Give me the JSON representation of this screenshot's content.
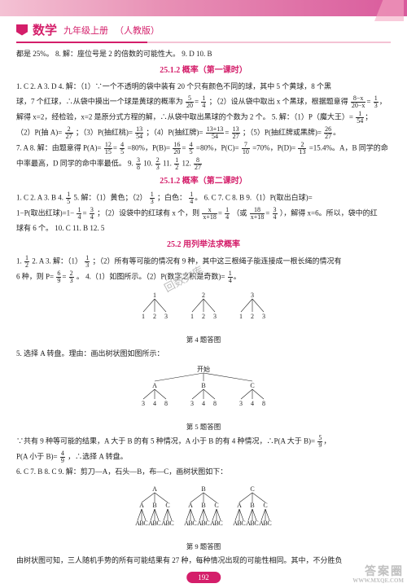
{
  "header": {
    "subject": "数学",
    "grade": "九年级上册",
    "edition": "（人教版）"
  },
  "content": {
    "line0": "都是 25%。 8. 解：座位号是 2 的倍数的可能性大。 9. D  10. B",
    "section1": "25.1.2  概率（第一课时）",
    "s1_p1_a": "1. C  2. A  3. D  4. 解：（1）∵一个不透明的袋中装有 20 个只有颜色不同的球，其中 5 个黄球，8 个黑",
    "s1_p1_b": "球，7 个红球，∴从袋中摸出一个球是黄球的概率为",
    "s1_p1_c": "；（2）设从袋中取出 x 个黑球，根据题意得",
    "s1_eq_lhs": "5",
    "s1_eq_rhs": "20",
    "s1_eq2": "解得 x=2，经检验，x=2 是原分式方程的解，∴从袋中取出黑球的个数为 2 个。 5. 解：（1）P（魔大王）=",
    "s1_p2": "（2）P(抽 A)=",
    "s1_p2b": "；（3）P(抽红桃)=",
    "s1_p2c": "；（4）P(抽红牌)=",
    "s1_p2d": "；（5）P(抽红牌或黑牌)=",
    "s1_p3a": "7. A  8. 解：由题意得 P(A)=",
    "s1_p3b": "=80%，P(B)=",
    "s1_p3c": "=80%，P(C)=",
    "s1_p3d": "=70%，P(D)=",
    "s1_p3e": "=15.4%。A，B 同学的命",
    "s1_p4": "中率最高，D 同学的命中率最低。 9.",
    "s1_p4b": "  10.",
    "s1_p4c": "  11.",
    "s1_p4d": "  12.",
    "section2": "25.1.2  概率（第二课时）",
    "s2_p1a": "1. C  2. A  3. B  4.",
    "s2_p1b": "  5. 解：（1）黄色；（2）",
    "s2_p1c": "；白色：",
    "s2_p1d": "6. C  7. C  8. B  9.（1）P(取出白球)=",
    "s2_p2a": "1−P(取出红球)=1−",
    "s2_p2b": "；（2）设袋中的红球有 x 个，则",
    "s2_p2c": "（或",
    "s2_p2d": "），解得 x=6。所以，袋中的红",
    "s2_p3": "球有 6 个。 10. C  11. B  12. 5",
    "section3": "25.2  用列举法求概率",
    "s3_p1a": "1.",
    "s3_p1b": "  2. A  3. 解：（1）",
    "s3_p1c": "；（2）所有等可能的情况有 9 种，其中这三根绳子能连接成一根长绳的情况有",
    "s3_p2a": "6 种，则 P=",
    "s3_p2b": "。 4.（1）如图所示。（2）P(数字之积是奇数)=",
    "cap4": "第 4 题答图",
    "s3_p3": "5. 选择 A 转盘。理由：画出树状图如图所示：",
    "tree5_root": "开始",
    "cap5": "第 5 题答图",
    "s3_p4a": "∵共有 9 种等可能的结果，A 大于 B 的有 5 种情况，A 小于 B 的有 4 种情况，∴P(A 大于 B)=",
    "s3_p5a": "P(A 小于 B)=",
    "s3_p5b": "，∴选择 A 转盘。",
    "s3_p6": "6. C  7. B  8. C  9. 解：剪刀—A，石头—B，布—C，画树状图如下：",
    "cap9": "第 9 题答图",
    "s3_p7": "由树状图可知，三人随机手势的所有可能结果有 27 种，每种情况出现的可能性相同。其中，不分胜负"
  },
  "fractions": {
    "f5_20": {
      "n": "5",
      "d": "20"
    },
    "f1_4": {
      "n": "1",
      "d": "4"
    },
    "f8x_20x": {
      "n": "8−x",
      "d": "20−x"
    },
    "f1_54": {
      "n": "1",
      "d": "54"
    },
    "f2_27": {
      "n": "2",
      "d": "27"
    },
    "f13_54": {
      "n": "13",
      "d": "54"
    },
    "f13p13_54": {
      "n": "13+13",
      "d": "54"
    },
    "f13_27": {
      "n": "13",
      "d": "27"
    },
    "f26_27": {
      "n": "26",
      "d": "27"
    },
    "f12_15": {
      "n": "12",
      "d": "15"
    },
    "f4_5": {
      "n": "4",
      "d": "5"
    },
    "f16_20": {
      "n": "16",
      "d": "20"
    },
    "f7_10": {
      "n": "7",
      "d": "10"
    },
    "f2_13": {
      "n": "2",
      "d": "13"
    },
    "f3_8": {
      "n": "3",
      "d": "8"
    },
    "f2_3": {
      "n": "2",
      "d": "3"
    },
    "f1_2": {
      "n": "1",
      "d": "2"
    },
    "f8_27": {
      "n": "8",
      "d": "27"
    },
    "f1_5": {
      "n": "1",
      "d": "5"
    },
    "f1_3": {
      "n": "1",
      "d": "3"
    },
    "f3_4": {
      "n": "3",
      "d": "4"
    },
    "fx_x18": {
      "n": "x",
      "d": "x+18"
    },
    "f18_x18": {
      "n": "18",
      "d": "x+18"
    },
    "f6_9": {
      "n": "6",
      "d": "9"
    },
    "f5_9": {
      "n": "5",
      "d": "9"
    },
    "f4_9": {
      "n": "4",
      "d": "9"
    }
  },
  "trees": {
    "t4": {
      "top": [
        "1",
        "2",
        "3"
      ],
      "leaves": [
        "1",
        "2",
        "3",
        "1",
        "2",
        "3",
        "1",
        "2",
        "3"
      ]
    },
    "t5": {
      "root": "开始",
      "mid": [
        "A",
        "B",
        "C"
      ],
      "leaves": [
        "3",
        "4",
        "8",
        "3",
        "4",
        "8",
        "3",
        "4",
        "8"
      ]
    },
    "t9": {
      "mid": [
        "A",
        "B",
        "C"
      ],
      "sub": [
        "A",
        "B",
        "C"
      ],
      "leaves": [
        "A",
        "B",
        "C"
      ]
    }
  },
  "page_number": "192",
  "watermark": {
    "big": "答案圈",
    "small": "WWW.MXQE.COM"
  },
  "diag_wm": "回数文库",
  "colors": {
    "brand": "#d41e6a",
    "stripe_light": "#f4c2d4",
    "text": "#222222"
  }
}
